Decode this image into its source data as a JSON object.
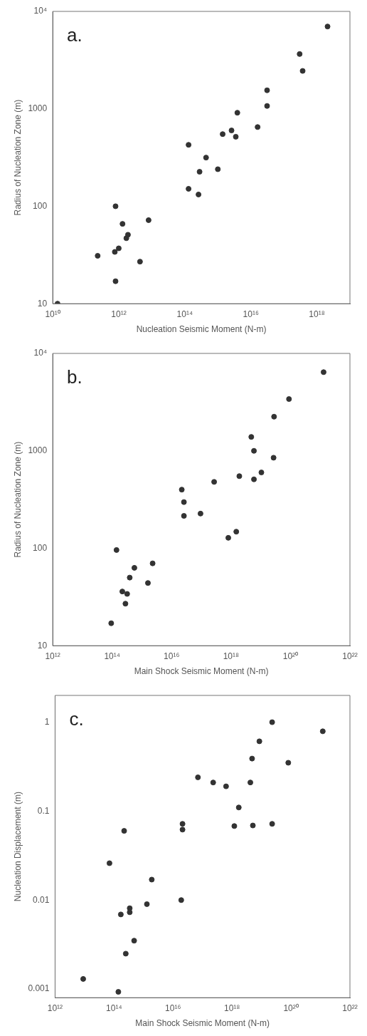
{
  "chart_data": [
    {
      "type": "scatter",
      "xlabel": "Nucleation Seismic Moment (N-m)",
      "ylabel": "Radius of Nucleation Zone (m)",
      "annotations": [
        "a."
      ],
      "log": "xy",
      "marker": "circle",
      "color": "#333333",
      "x": [
        14000000000.0,
        230000000000.0,
        800000000000.0,
        800000000000.0,
        760000000000.0,
        1000000000000.0,
        1300000000000.0,
        1700000000000.0,
        1900000000000.0,
        4400000000000.0,
        8000000000000.0,
        130000000000000.0,
        130000000000000.0,
        260000000000000.0,
        280000000000000.0,
        440000000000000.0,
        1000000000000000.0,
        1400000000000000.0,
        2600000000000000.0,
        3500000000000000.0,
        3900000000000000.0,
        1.6e+16,
        3.1e+16,
        3.1e+16,
        3e+17,
        3.7e+17,
        2.1e+18
      ],
      "values": [
        10,
        31,
        100,
        17,
        34,
        37,
        66,
        47,
        51,
        27,
        72,
        151,
        427,
        132,
        226,
        316,
        240,
        550,
        600,
        517,
        912,
        650,
        1070,
        1550,
        3650,
        2450,
        7000
      ],
      "xlim": [
        10000000000.0,
        1e+19
      ],
      "xticks": [
        {
          "value": 10000000000.0,
          "label": "10¹⁰"
        },
        {
          "value": 1000000000000.0,
          "label": "10¹²"
        },
        {
          "value": 100000000000000.0,
          "label": "10¹⁴"
        },
        {
          "value": 1e+16,
          "label": "10¹⁶"
        },
        {
          "value": 1e+18,
          "label": "10¹⁸"
        }
      ],
      "ylim": [
        10,
        10000
      ],
      "yticks": [
        10,
        100,
        1000,
        {
          "value": 10000,
          "label": "10⁴"
        }
      ]
    },
    {
      "type": "scatter",
      "xlabel": "Main Shock Seismic Moment (N-m)",
      "ylabel": "Radius of Nucleation Zone (m)",
      "annotations": [
        "b."
      ],
      "log": "xy",
      "marker": "circle",
      "color": "#333333",
      "x": [
        93000000000000.0,
        140000000000000.0,
        280000000000000.0,
        220000000000000.0,
        320000000000000.0,
        390000000000000.0,
        560000000000000.0,
        1600000000000000.0,
        2300000000000000.0,
        2.2e+16,
        2.6e+16,
        2.6e+16,
        9.4e+16,
        2.7e+17,
        8.1e+17,
        1.5e+18,
        1.9e+18,
        4.8e+18,
        5.9e+18,
        5.9e+18,
        1.05e+19,
        2.7e+19,
        2.8e+19,
        8.9e+19,
        1.3e+21
      ],
      "values": [
        17,
        96,
        27,
        36,
        34,
        50,
        63,
        44,
        70,
        400,
        298,
        215,
        227,
        480,
        128,
        148,
        550,
        1390,
        1000,
        510,
        600,
        850,
        2240,
        3400,
        6420
      ],
      "xlim": [
        1000000000000.0,
        1e+22
      ],
      "xticks": [
        {
          "value": 1000000000000.0,
          "label": "10¹²"
        },
        {
          "value": 100000000000000.0,
          "label": "10¹⁴"
        },
        {
          "value": 1e+16,
          "label": "10¹⁶"
        },
        {
          "value": 1e+18,
          "label": "10¹⁸"
        },
        {
          "value": 1e+20,
          "label": "10²⁰"
        },
        {
          "value": 1e+22,
          "label": "10²²"
        }
      ],
      "ylim": [
        10,
        10000
      ],
      "yticks": [
        10,
        100,
        1000,
        {
          "value": 10000,
          "label": "10⁴"
        }
      ]
    },
    {
      "type": "scatter",
      "xlabel": "Main Shock Seismic Moment (N-m)",
      "ylabel": "Nucleation Displacement (m)",
      "annotations": [
        "c."
      ],
      "log": "xy",
      "marker": "circle",
      "color": "#333333",
      "x": [
        9000000000000.0,
        140000000000000.0,
        70000000000000.0,
        220000000000000.0,
        170000000000000.0,
        340000000000000.0,
        340000000000000.0,
        250000000000000.0,
        480000000000000.0,
        1300000000000000.0,
        1900000000000000.0,
        1.9e+16,
        2.1e+16,
        2.1e+16,
        7e+16,
        2.3e+17,
        6.3e+17,
        1.7e+18,
        1.2e+18,
        5.1e+18,
        4.2e+18,
        4.8e+18,
        8.5e+18,
        2.3e+19,
        2.3e+19,
        8.1e+19,
        1.2e+21
      ],
      "values": [
        0.0013,
        0.00093,
        0.026,
        0.06,
        0.0069,
        0.0073,
        0.0081,
        0.0025,
        0.0035,
        0.009,
        0.017,
        0.01,
        0.072,
        0.062,
        0.24,
        0.21,
        0.19,
        0.11,
        0.068,
        0.069,
        0.21,
        0.39,
        0.61,
        1.0,
        0.072,
        0.35,
        0.79
      ],
      "xlim": [
        1000000000000.0,
        1e+22
      ],
      "xticks": [
        {
          "value": 1000000000000.0,
          "label": "10¹²"
        },
        {
          "value": 100000000000000.0,
          "label": "10¹⁴"
        },
        {
          "value": 1e+16,
          "label": "10¹⁶"
        },
        {
          "value": 1e+18,
          "label": "10¹⁸"
        },
        {
          "value": 1e+20,
          "label": "10²⁰"
        },
        {
          "value": 1e+22,
          "label": "10²²"
        }
      ],
      "ylim": [
        0.0008,
        2
      ],
      "yticks": [
        0.001,
        0.01,
        0.1,
        1
      ]
    }
  ]
}
